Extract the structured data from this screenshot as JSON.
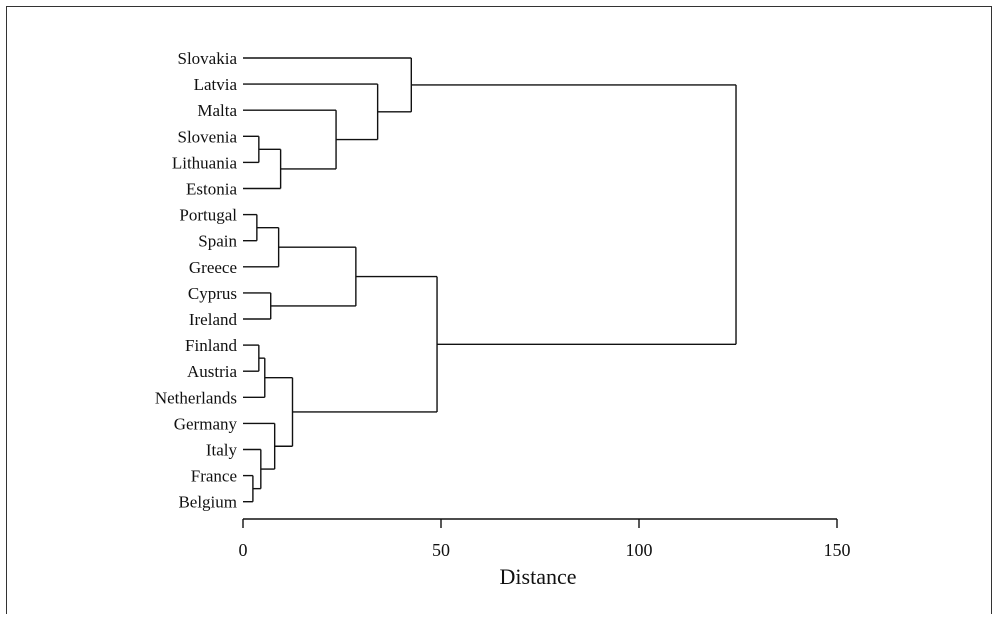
{
  "chart_data": {
    "type": "dendrogram",
    "title": "",
    "xlabel": "Distance",
    "ylabel": "",
    "xlim": [
      0,
      150
    ],
    "xticks": [
      0,
      50,
      100,
      150
    ],
    "grid": false,
    "leaves": [
      "Slovakia",
      "Latvia",
      "Malta",
      "Slovenia",
      "Lithuania",
      "Estonia",
      "Portugal",
      "Spain",
      "Greece",
      "Cyprus",
      "Ireland",
      "Finland",
      "Austria",
      "Netherlands",
      "Germany",
      "Italy",
      "France",
      "Belgium"
    ],
    "merges": [
      {
        "id": "m1",
        "children": [
          "Slovenia",
          "Lithuania"
        ],
        "distance": 4
      },
      {
        "id": "m2",
        "children": [
          "m1",
          "Estonia"
        ],
        "distance": 9.5
      },
      {
        "id": "m3",
        "children": [
          "Malta",
          "m2"
        ],
        "distance": 23.5
      },
      {
        "id": "m4",
        "children": [
          "Latvia",
          "m3"
        ],
        "distance": 34
      },
      {
        "id": "m5",
        "children": [
          "Slovakia",
          "m4"
        ],
        "distance": 42.5
      },
      {
        "id": "m6",
        "children": [
          "Portugal",
          "Spain"
        ],
        "distance": 3.5
      },
      {
        "id": "m7",
        "children": [
          "m6",
          "Greece"
        ],
        "distance": 9
      },
      {
        "id": "m8",
        "children": [
          "Cyprus",
          "Ireland"
        ],
        "distance": 7
      },
      {
        "id": "m9",
        "children": [
          "m7",
          "m8"
        ],
        "distance": 28.5
      },
      {
        "id": "m10",
        "children": [
          "Finland",
          "Austria"
        ],
        "distance": 4
      },
      {
        "id": "m11",
        "children": [
          "m10",
          "Netherlands"
        ],
        "distance": 5.5
      },
      {
        "id": "m12",
        "children": [
          "France",
          "Belgium"
        ],
        "distance": 2.5
      },
      {
        "id": "m13",
        "children": [
          "Italy",
          "m12"
        ],
        "distance": 4.5
      },
      {
        "id": "m14",
        "children": [
          "Germany",
          "m13"
        ],
        "distance": 8
      },
      {
        "id": "m15",
        "children": [
          "m11",
          "m14"
        ],
        "distance": 12.5
      },
      {
        "id": "m16",
        "children": [
          "m9",
          "m15"
        ],
        "distance": 49
      },
      {
        "id": "m17",
        "children": [
          "m5",
          "m16"
        ],
        "distance": 124.5
      }
    ]
  }
}
